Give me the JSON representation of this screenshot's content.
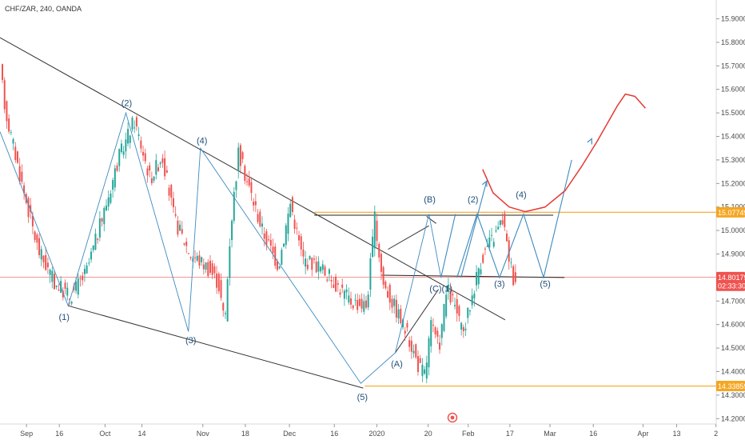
{
  "header": {
    "symbol": "CHF/ZAR, 240, OANDA"
  },
  "chart_data": {
    "type": "line",
    "title": "CHF/ZAR, 240, OANDA",
    "ylim": [
      14.15,
      15.98
    ],
    "y_ticks": [
      "15.90000",
      "15.80000",
      "15.70000",
      "15.60000",
      "15.50000",
      "15.40000",
      "15.30000",
      "15.20000",
      "15.10000",
      "15.00000",
      "14.90000",
      "14.80000",
      "14.70000",
      "14.60000",
      "14.50000",
      "14.40000",
      "14.30000",
      "14.20000"
    ],
    "x_ticks": [
      "Sep",
      "16",
      "Oct",
      "14",
      "Nov",
      "18",
      "Dec",
      "16",
      "2020",
      "20",
      "Feb",
      "17",
      "Mar",
      "16",
      "Apr",
      "13",
      "2"
    ],
    "price_tags": [
      {
        "label": "15.07749",
        "value": 15.0775,
        "color": "#f5a623"
      },
      {
        "label": "14.80179",
        "value": 14.8018,
        "color": "#ef5350"
      },
      {
        "label": "02:33:30",
        "value": 14.765,
        "color": "#ef5350"
      },
      {
        "label": "14.33859",
        "value": 14.3386,
        "color": "#f5a623"
      }
    ],
    "series": [
      {
        "name": "",
        "values": [
          [
            0.3,
            15.68
          ],
          [
            1,
            15.5
          ],
          [
            3,
            15.2
          ],
          [
            5,
            14.92
          ],
          [
            7,
            14.78
          ],
          [
            9,
            14.72
          ],
          [
            11,
            14.82
          ],
          [
            13,
            15.05
          ],
          [
            15,
            15.3
          ],
          [
            17,
            15.47
          ],
          [
            19,
            15.22
          ],
          [
            20.5,
            15.32
          ],
          [
            22,
            15.05
          ],
          [
            24,
            14.9
          ],
          [
            26,
            14.85
          ],
          [
            27.5,
            14.78
          ],
          [
            28.3,
            14.6
          ],
          [
            29,
            15.0
          ],
          [
            30,
            15.33
          ],
          [
            31,
            15.22
          ],
          [
            33,
            15.0
          ],
          [
            35,
            14.85
          ],
          [
            36.5,
            15.12
          ],
          [
            38,
            14.88
          ],
          [
            40,
            14.85
          ],
          [
            42,
            14.78
          ],
          [
            44,
            14.7
          ],
          [
            46,
            14.68
          ],
          [
            47,
            15.05
          ],
          [
            48,
            14.78
          ],
          [
            50,
            14.64
          ],
          [
            51.5,
            14.52
          ],
          [
            52.5,
            14.42
          ],
          [
            53.3,
            14.39
          ],
          [
            54,
            14.6
          ],
          [
            55,
            14.5
          ],
          [
            56,
            14.75
          ],
          [
            57,
            14.68
          ],
          [
            58,
            14.55
          ],
          [
            59,
            14.7
          ],
          [
            60,
            14.85
          ],
          [
            61,
            14.93
          ],
          [
            62,
            14.98
          ],
          [
            63,
            15.05
          ],
          [
            63.5,
            14.93
          ],
          [
            64.3,
            14.8
          ]
        ]
      }
    ],
    "waves": [
      {
        "label": "(1)",
        "x": 9.3,
        "y": 14.67
      },
      {
        "label": "(2)",
        "x": 18.9,
        "y": 15.5
      },
      {
        "label": "(3)",
        "x": 28.3,
        "y": 14.57
      },
      {
        "label": "(4)",
        "x": 30.1,
        "y": 15.35
      },
      {
        "label": "(5)",
        "x": 54.3,
        "y": 14.34
      },
      {
        "label": "(A)",
        "x": 59.5,
        "y": 14.49
      },
      {
        "label": "(B)",
        "x": 64.5,
        "y": 15.07
      },
      {
        "label": "(C)(1)",
        "x": 66.3,
        "y": 14.78
      },
      {
        "label": "(2)",
        "x": 71.0,
        "y": 15.2
      },
      {
        "label": "(3)",
        "x": 75.3,
        "y": 14.8
      },
      {
        "label": "(4)",
        "x": 78.8,
        "y": 15.1
      },
      {
        "label": "(5)",
        "x": 82.3,
        "y": 14.8
      }
    ]
  }
}
